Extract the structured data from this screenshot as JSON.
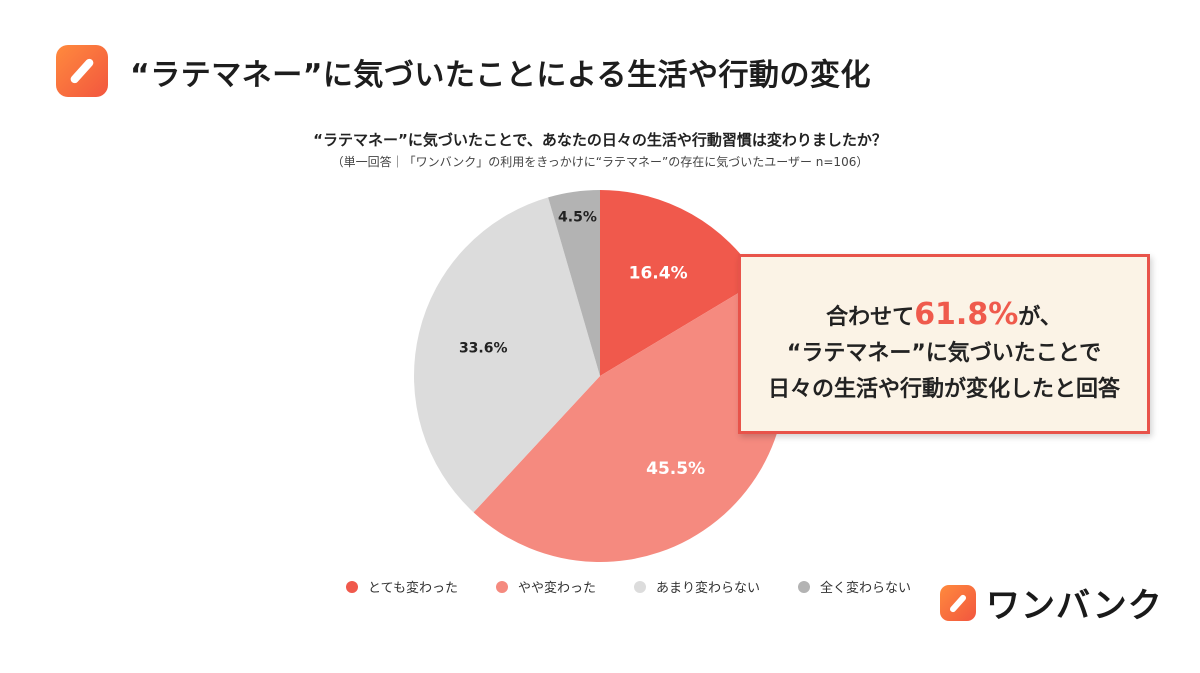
{
  "header": {
    "title": "“ラテマネー”に気づいたことによる生活や行動の変化"
  },
  "chart_data": {
    "type": "pie",
    "title": "“ラテマネー”に気づいたことで、あなたの日々の生活や行動習慣は変わりましたか？",
    "subtitle": "（単一回答｜「ワンバンク」の利用をきっかけに“ラテマネー”の存在に気づいたユーザー n=106）",
    "slices": [
      {
        "label": "とても変わった",
        "value": 16.4,
        "display": "16.4%",
        "color": "#f0594c",
        "text_color": "#ffffff"
      },
      {
        "label": "やや変わった",
        "value": 45.5,
        "display": "45.5%",
        "color": "#f58a7f",
        "text_color": "#ffffff"
      },
      {
        "label": "あまり変わらない",
        "value": 33.6,
        "display": "33.6%",
        "color": "#dcdcdc",
        "text_color": "#222222"
      },
      {
        "label": "全く変わらない",
        "value": 4.5,
        "display": "4.5%",
        "color": "#b3b3b3",
        "text_color": "#222222"
      }
    ],
    "legend_position": "bottom"
  },
  "callout": {
    "line1_prefix": "合わせて",
    "highlight": "61.8%",
    "line1_suffix": "が、",
    "line2": "“ラテマネー”に気づいたことで",
    "line3": "日々の生活や行動が変化したと回答",
    "accent_color": "#ef5a4c"
  },
  "brand": {
    "name": "ワンバンク"
  }
}
